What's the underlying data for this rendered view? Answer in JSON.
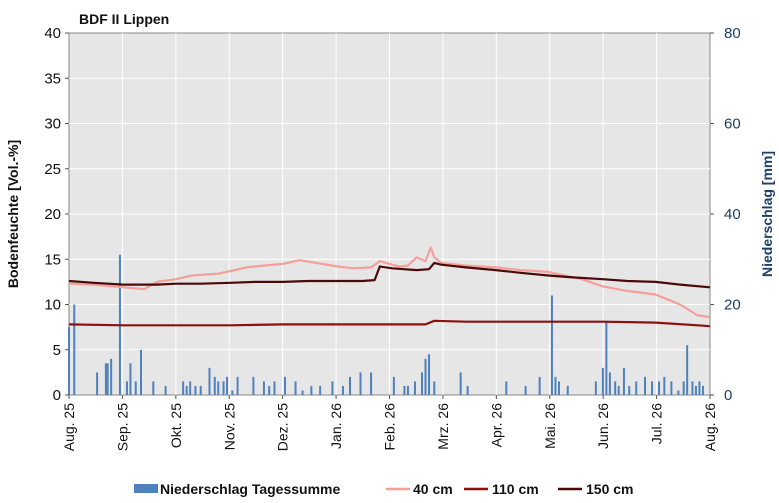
{
  "chart_data": {
    "type": "line",
    "title": "BDF II Lippen",
    "ylabel": "Bodenfeuchte [Vol.-%]",
    "y2label": "Niederschlag [mm]",
    "ylim": [
      0,
      40
    ],
    "y2lim": [
      0,
      80
    ],
    "yticks": [
      "0",
      "5",
      "10",
      "15",
      "20",
      "25",
      "30",
      "35",
      "40"
    ],
    "y2ticks": [
      "0",
      "20",
      "40",
      "60",
      "80"
    ],
    "xlim": [
      "2025-08-01",
      "2026-08-01"
    ],
    "xticks": [
      "Aug. 25",
      "Sep. 25",
      "Okt. 25",
      "Nov. 25",
      "Dez. 25",
      "Jan. 26",
      "Feb. 26",
      "Mrz. 26",
      "Apr. 26",
      "Mai. 26",
      "Jun. 26",
      "Jul. 26",
      "Aug. 26"
    ],
    "grid": true,
    "legend_position": "bottom",
    "colors": {
      "background": "#e6e6e6",
      "gridline": "#ffffff",
      "precip": "#4f81bd",
      "s40": "#f4a09a",
      "s110": "#8b1010",
      "s150": "#4a0a0a",
      "right_axis": "#1f3f66"
    },
    "precip_series": {
      "name": "Niederschlag Tagessumme",
      "axis": "right",
      "x": [
        "2025-08-01",
        "2025-08-04",
        "2025-08-17",
        "2025-08-22",
        "2025-08-23",
        "2025-08-25",
        "2025-08-30",
        "2025-09-03",
        "2025-09-05",
        "2025-09-08",
        "2025-09-11",
        "2025-09-18",
        "2025-09-25",
        "2025-10-05",
        "2025-10-07",
        "2025-10-09",
        "2025-10-12",
        "2025-10-15",
        "2025-10-20",
        "2025-10-23",
        "2025-10-25",
        "2025-10-28",
        "2025-10-30",
        "2025-11-02",
        "2025-11-05",
        "2025-11-14",
        "2025-11-20",
        "2025-11-23",
        "2025-11-26",
        "2025-12-02",
        "2025-12-08",
        "2025-12-12",
        "2025-12-17",
        "2025-12-22",
        "2025-12-29",
        "2026-01-04",
        "2026-01-08",
        "2026-01-14",
        "2026-01-20",
        "2026-02-02",
        "2026-02-08",
        "2026-02-10",
        "2026-02-14",
        "2026-02-18",
        "2026-02-20",
        "2026-02-22",
        "2026-02-25",
        "2026-03-12",
        "2026-03-16",
        "2026-04-07",
        "2026-04-18",
        "2026-04-26",
        "2026-05-03",
        "2026-05-05",
        "2026-05-07",
        "2026-05-12",
        "2026-05-28",
        "2026-06-01",
        "2026-06-03",
        "2026-06-05",
        "2026-06-08",
        "2026-06-10",
        "2026-06-13",
        "2026-06-16",
        "2026-06-20",
        "2026-06-25",
        "2026-06-29",
        "2026-07-03",
        "2026-07-06",
        "2026-07-10",
        "2026-07-14",
        "2026-07-17",
        "2026-07-19",
        "2026-07-22",
        "2026-07-24",
        "2026-07-26",
        "2026-07-28"
      ],
      "values": [
        15,
        20,
        5,
        7,
        7,
        8,
        31,
        3,
        7,
        3,
        10,
        3,
        2,
        3,
        2,
        3,
        2,
        2,
        6,
        4,
        3,
        3,
        4,
        1,
        4,
        4,
        3,
        2,
        3,
        4,
        3,
        1,
        2,
        2,
        3,
        2,
        4,
        5,
        5,
        4,
        2,
        2,
        3,
        5,
        8,
        9,
        3,
        5,
        2,
        3,
        2,
        4,
        22,
        4,
        3,
        2,
        3,
        6,
        16,
        5,
        3,
        2,
        6,
        2,
        3,
        4,
        3,
        3,
        4,
        3,
        1,
        3,
        11,
        3,
        2,
        3,
        2
      ]
    },
    "series": [
      {
        "name": "40 cm",
        "x": [
          "2025-08-01",
          "2025-08-15",
          "2025-09-01",
          "2025-09-13",
          "2025-09-20",
          "2025-10-01",
          "2025-10-10",
          "2025-10-25",
          "2025-11-01",
          "2025-11-10",
          "2025-11-20",
          "2025-12-01",
          "2025-12-10",
          "2025-12-20",
          "2026-01-01",
          "2026-01-10",
          "2026-01-20",
          "2026-01-25",
          "2026-02-01",
          "2026-02-05",
          "2026-02-10",
          "2026-02-15",
          "2026-02-20",
          "2026-02-23",
          "2026-02-25",
          "2026-03-01",
          "2026-03-15",
          "2026-04-01",
          "2026-04-15",
          "2026-05-01",
          "2026-05-10",
          "2026-05-20",
          "2026-06-01",
          "2026-06-15",
          "2026-07-01",
          "2026-07-15",
          "2026-07-25",
          "2026-08-01"
        ],
        "values": [
          12.3,
          12.2,
          11.9,
          11.7,
          12.5,
          12.8,
          13.2,
          13.4,
          13.7,
          14.1,
          14.3,
          14.5,
          14.9,
          14.6,
          14.2,
          14.0,
          14.1,
          14.8,
          14.4,
          14.2,
          14.3,
          15.2,
          14.8,
          16.3,
          15.2,
          14.6,
          14.3,
          14.1,
          13.8,
          13.6,
          13.2,
          12.8,
          12.0,
          11.5,
          11.1,
          10.0,
          8.8,
          8.6
        ]
      },
      {
        "name": "110 cm",
        "x": [
          "2025-08-01",
          "2025-09-01",
          "2025-10-01",
          "2025-11-01",
          "2025-12-01",
          "2026-01-01",
          "2026-02-01",
          "2026-02-20",
          "2026-02-25",
          "2026-03-15",
          "2026-04-01",
          "2026-05-01",
          "2026-06-01",
          "2026-07-01",
          "2026-07-25",
          "2026-08-01"
        ],
        "values": [
          7.8,
          7.7,
          7.7,
          7.7,
          7.8,
          7.8,
          7.8,
          7.8,
          8.2,
          8.1,
          8.1,
          8.1,
          8.1,
          8.0,
          7.7,
          7.6
        ]
      },
      {
        "name": "150 cm",
        "x": [
          "2025-08-01",
          "2025-08-15",
          "2025-09-01",
          "2025-09-20",
          "2025-10-01",
          "2025-10-15",
          "2025-11-01",
          "2025-11-15",
          "2025-12-01",
          "2025-12-15",
          "2026-01-01",
          "2026-01-15",
          "2026-01-22",
          "2026-01-25",
          "2026-02-01",
          "2026-02-15",
          "2026-02-22",
          "2026-02-25",
          "2026-03-01",
          "2026-03-15",
          "2026-04-01",
          "2026-04-15",
          "2026-05-01",
          "2026-05-15",
          "2026-06-01",
          "2026-06-15",
          "2026-07-01",
          "2026-07-15",
          "2026-08-01"
        ],
        "values": [
          12.6,
          12.4,
          12.2,
          12.2,
          12.3,
          12.3,
          12.4,
          12.5,
          12.5,
          12.6,
          12.6,
          12.6,
          12.7,
          14.2,
          14.0,
          13.8,
          13.9,
          14.6,
          14.4,
          14.1,
          13.8,
          13.5,
          13.2,
          13.0,
          12.8,
          12.6,
          12.5,
          12.2,
          11.9
        ]
      }
    ],
    "legend": [
      "Niederschlag Tagessumme",
      "40 cm",
      "110 cm",
      "150 cm"
    ]
  }
}
